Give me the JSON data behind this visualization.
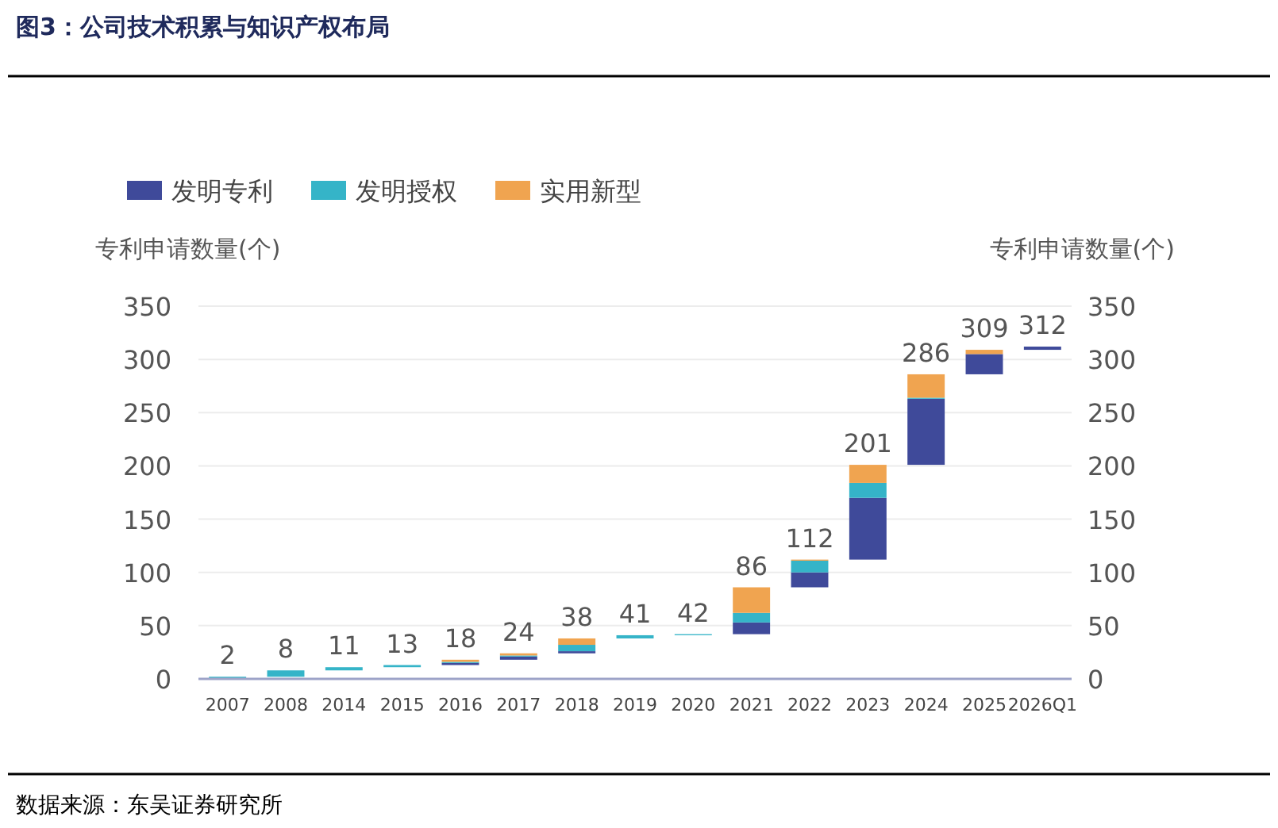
{
  "chart_data": {
    "type": "bar",
    "title": "图3：公司技术积累与知识产权布局",
    "ylabel": "专利申请数量(个)",
    "y2label": "专利申请数量(个)",
    "categories": [
      "2007",
      "2008",
      "2014",
      "2015",
      "2016",
      "2017",
      "2018",
      "2019",
      "2020",
      "2021",
      "2022",
      "2023",
      "2024",
      "2025",
      "2026Q1"
    ],
    "series": [
      {
        "name": "发明专利",
        "color": "#3f4a9a",
        "base": [
          null,
          null,
          null,
          null,
          13,
          18,
          24,
          null,
          null,
          42,
          86,
          112,
          201,
          286,
          309
        ],
        "values": [
          null,
          null,
          null,
          null,
          2,
          3,
          2,
          null,
          null,
          11,
          14,
          58,
          62,
          19,
          3
        ]
      },
      {
        "name": "发明授权",
        "color": "#35b4c8",
        "base": [
          0,
          2,
          8,
          11,
          15,
          21,
          26,
          38,
          41,
          53,
          100,
          170,
          263,
          null,
          null
        ],
        "values": [
          2,
          6,
          3,
          2,
          1,
          1,
          6,
          3,
          1,
          9,
          11,
          14,
          1,
          null,
          null
        ]
      },
      {
        "name": "实用新型",
        "color": "#f0a450",
        "base": [
          null,
          null,
          null,
          null,
          16,
          22,
          32,
          null,
          null,
          62,
          111,
          184,
          264,
          305,
          null
        ],
        "values": [
          null,
          null,
          null,
          null,
          2,
          2,
          6,
          null,
          null,
          24,
          1,
          17,
          22,
          4,
          null
        ]
      }
    ],
    "ylim": [
      0,
      350
    ],
    "yticks": [
      0,
      50,
      100,
      150,
      200,
      250,
      300,
      350
    ],
    "y2lim": [
      0,
      350
    ],
    "y2ticks": [
      0,
      50,
      100,
      150,
      200,
      250,
      300,
      350
    ],
    "grid": "y",
    "legend": "top left",
    "annotations": [
      "数据来源：东吴证券研究所",
      {
        "text": "2",
        "x": "2007",
        "y": 2
      },
      {
        "text": "8",
        "x": "2008",
        "y": 8
      },
      {
        "text": "11",
        "x": "2014",
        "y": 11
      },
      {
        "text": "13",
        "x": "2015",
        "y": 13
      },
      {
        "text": "18",
        "x": "2016",
        "y": 18
      },
      {
        "text": "24",
        "x": "2017",
        "y": 24
      },
      {
        "text": "38",
        "x": "2018",
        "y": 38
      },
      {
        "text": "41",
        "x": "2019",
        "y": 41
      },
      {
        "text": "42",
        "x": "2020",
        "y": 42
      },
      {
        "text": "86",
        "x": "2021",
        "y": 86
      },
      {
        "text": "112",
        "x": "2022",
        "y": 112
      },
      {
        "text": "201",
        "x": "2023",
        "y": 201
      },
      {
        "text": "286",
        "x": "2024",
        "y": 286
      },
      {
        "text": "309",
        "x": "2025",
        "y": 309
      },
      {
        "text": "312",
        "x": "2026Q1",
        "y": 312
      }
    ]
  }
}
